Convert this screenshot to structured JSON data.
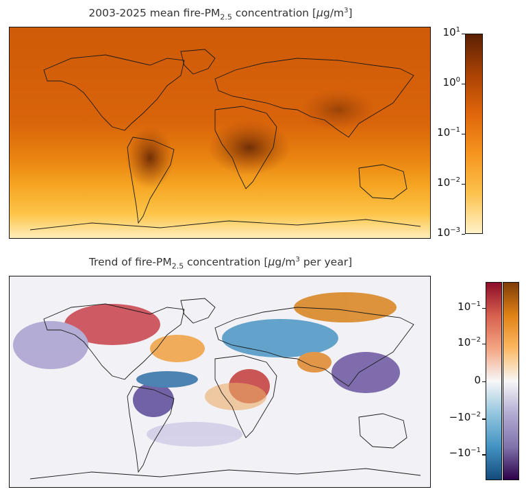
{
  "panel1": {
    "title_prefix": "2003-2025 mean fire-PM",
    "title_sub": "2.5",
    "title_mid": " concentration [",
    "title_mu": "μ",
    "title_unit": "g/m",
    "title_pow": "3",
    "title_end": "]",
    "colorbar": {
      "scale": "log",
      "ticks": [
        {
          "base": "10",
          "exp": "1"
        },
        {
          "base": "10",
          "exp": "0"
        },
        {
          "base": "10",
          "exp": "−1"
        },
        {
          "base": "10",
          "exp": "−2"
        },
        {
          "base": "10",
          "exp": "−3"
        }
      ],
      "colors": [
        "#5a2004",
        "#a94204",
        "#e0660b",
        "#f5951e",
        "#fcc24e",
        "#fff2c8"
      ]
    }
  },
  "panel2": {
    "title_prefix": "Trend of fire-PM",
    "title_sub": "2.5",
    "title_mid": " concentration [",
    "title_mu": "μ",
    "title_unit": "g/m",
    "title_pow": "3",
    "title_end": " per year]",
    "colorbar": {
      "scale": "symlog",
      "ticks": [
        {
          "base": "10",
          "exp": "−1",
          "sign": ""
        },
        {
          "base": "10",
          "exp": "−2",
          "sign": ""
        },
        {
          "base": "0",
          "exp": "",
          "sign": ""
        },
        {
          "base": "10",
          "exp": "−2",
          "sign": "−"
        },
        {
          "base": "10",
          "exp": "−1",
          "sign": "−"
        }
      ],
      "left_colors": [
        "#8c0d2a",
        "#d6604d",
        "#f4a582",
        "#f7f7f7",
        "#92c5de",
        "#4393c3",
        "#134b7a"
      ],
      "right_colors": [
        "#7f3b08",
        "#e08214",
        "#fdb863",
        "#f7f7f7",
        "#b2abd2",
        "#8073ac",
        "#2d004b"
      ]
    }
  }
}
